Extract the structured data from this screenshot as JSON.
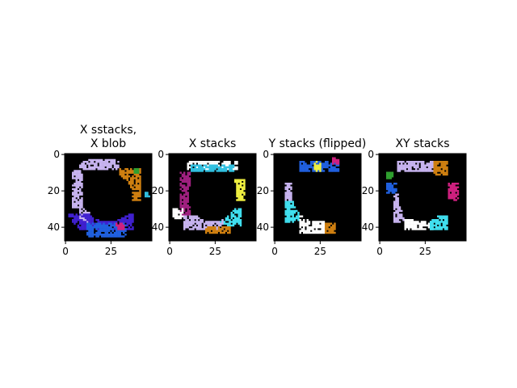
{
  "chart_data": [
    {
      "type": "heatmap",
      "title_lines": [
        "X sstacks,",
        "X blob"
      ],
      "x_ticks": [
        0,
        25
      ],
      "y_ticks": [
        0,
        20,
        40
      ],
      "xlim": [
        0,
        48
      ],
      "ylim": [
        48,
        0
      ],
      "background": "#000000",
      "segments": [
        {
          "color": "#c8b4f0",
          "x": [
            8,
            30
          ],
          "y": [
            3,
            9
          ]
        },
        {
          "color": "#c8b4f0",
          "x": [
            4,
            10
          ],
          "y": [
            9,
            30
          ]
        },
        {
          "color": "#c8b4f0",
          "x": [
            8,
            14
          ],
          "y": [
            30,
            38
          ]
        },
        {
          "color": "#d08010",
          "x": [
            30,
            42
          ],
          "y": [
            8,
            26
          ]
        },
        {
          "color": "#4020d0",
          "x": [
            2,
            38
          ],
          "y": [
            33,
            42
          ]
        },
        {
          "color": "#2060e0",
          "x": [
            12,
            34
          ],
          "y": [
            38,
            46
          ]
        },
        {
          "color": "#30a030",
          "x": [
            38,
            41
          ],
          "y": [
            8,
            11
          ]
        },
        {
          "color": "#30c0e0",
          "x": [
            44,
            47
          ],
          "y": [
            21,
            24
          ]
        },
        {
          "color": "#d02080",
          "x": [
            28,
            33
          ],
          "y": [
            38,
            42
          ]
        }
      ]
    },
    {
      "type": "heatmap",
      "title_lines": [
        "X stacks"
      ],
      "x_ticks": [
        0,
        25
      ],
      "y_ticks": [
        0,
        20,
        40
      ],
      "xlim": [
        0,
        48
      ],
      "ylim": [
        48,
        0
      ],
      "background": "#000000",
      "segments": [
        {
          "color": "#ffffff",
          "x": [
            10,
            38
          ],
          "y": [
            4,
            9
          ]
        },
        {
          "color": "#30c0e0",
          "x": [
            12,
            36
          ],
          "y": [
            6,
            10
          ]
        },
        {
          "color": "#a02080",
          "x": [
            6,
            12
          ],
          "y": [
            10,
            34
          ]
        },
        {
          "color": "#f0f040",
          "x": [
            36,
            42
          ],
          "y": [
            14,
            26
          ]
        },
        {
          "color": "#40e0f0",
          "x": [
            28,
            40
          ],
          "y": [
            30,
            40
          ]
        },
        {
          "color": "#c8b4f0",
          "x": [
            8,
            30
          ],
          "y": [
            34,
            42
          ]
        },
        {
          "color": "#d08010",
          "x": [
            20,
            34
          ],
          "y": [
            40,
            44
          ]
        },
        {
          "color": "#ffffff",
          "x": [
            2,
            8
          ],
          "y": [
            30,
            36
          ]
        }
      ]
    },
    {
      "type": "heatmap",
      "title_lines": [
        "Y stacks (flipped)"
      ],
      "x_ticks": [
        0,
        25
      ],
      "y_ticks": [
        0,
        20,
        40
      ],
      "xlim": [
        0,
        48
      ],
      "ylim": [
        48,
        0
      ],
      "background": "#000000",
      "segments": [
        {
          "color": "#2060e0",
          "x": [
            14,
            36
          ],
          "y": [
            4,
            10
          ]
        },
        {
          "color": "#f0f040",
          "x": [
            22,
            26
          ],
          "y": [
            4,
            10
          ]
        },
        {
          "color": "#c8b4f0",
          "x": [
            6,
            10
          ],
          "y": [
            16,
            26
          ]
        },
        {
          "color": "#40e0f0",
          "x": [
            6,
            14
          ],
          "y": [
            26,
            38
          ]
        },
        {
          "color": "#ffffff",
          "x": [
            14,
            28
          ],
          "y": [
            34,
            44
          ]
        },
        {
          "color": "#d08010",
          "x": [
            28,
            34
          ],
          "y": [
            38,
            44
          ]
        },
        {
          "color": "#d02080",
          "x": [
            32,
            36
          ],
          "y": [
            0,
            6
          ]
        }
      ]
    },
    {
      "type": "heatmap",
      "title_lines": [
        "XY stacks"
      ],
      "x_ticks": [
        0,
        25
      ],
      "y_ticks": [
        0,
        20,
        40
      ],
      "xlim": [
        0,
        48
      ],
      "ylim": [
        48,
        0
      ],
      "background": "#000000",
      "segments": [
        {
          "color": "#c8b4f0",
          "x": [
            10,
            30
          ],
          "y": [
            4,
            10
          ]
        },
        {
          "color": "#d08010",
          "x": [
            30,
            38
          ],
          "y": [
            4,
            12
          ]
        },
        {
          "color": "#d02080",
          "x": [
            38,
            44
          ],
          "y": [
            16,
            26
          ]
        },
        {
          "color": "#2060e0",
          "x": [
            4,
            10
          ],
          "y": [
            16,
            22
          ]
        },
        {
          "color": "#c8b4f0",
          "x": [
            8,
            14
          ],
          "y": [
            22,
            38
          ]
        },
        {
          "color": "#ffffff",
          "x": [
            14,
            30
          ],
          "y": [
            36,
            42
          ]
        },
        {
          "color": "#40e0f0",
          "x": [
            28,
            38
          ],
          "y": [
            34,
            42
          ]
        },
        {
          "color": "#30a030",
          "x": [
            4,
            8
          ],
          "y": [
            10,
            14
          ]
        }
      ]
    }
  ]
}
